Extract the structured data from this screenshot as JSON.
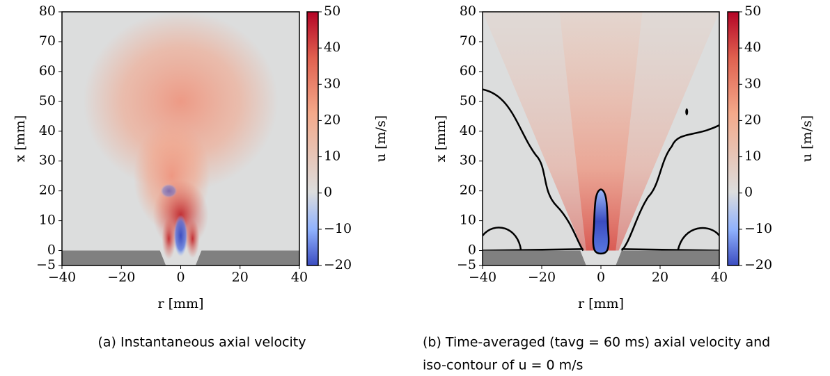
{
  "chart_data": [
    {
      "type": "heatmap",
      "xlabel": "r [mm]",
      "ylabel": "x [mm]",
      "colorbar_label": "u [m/s]",
      "xlim": [
        -40,
        40
      ],
      "ylim": [
        -5,
        80
      ],
      "xticks": [
        {
          "value": -40,
          "label": "−40"
        },
        {
          "value": -20,
          "label": "−20"
        },
        0,
        20,
        40
      ],
      "yticks": [
        {
          "value": -5,
          "label": "−5"
        },
        0,
        10,
        20,
        30,
        40,
        50,
        60,
        70,
        80
      ],
      "clim": [
        -20,
        50
      ],
      "cticks": [
        {
          "value": -20,
          "label": "−20"
        },
        {
          "value": -10,
          "label": "−10"
        },
        0,
        10,
        20,
        30,
        40,
        50
      ],
      "caption": [
        "(a) Instantaneous axial velocity"
      ]
    },
    {
      "type": "heatmap",
      "xlabel": "r [mm]",
      "ylabel": "x [mm]",
      "colorbar_label": "u [m/s]",
      "xlim": [
        -40,
        40
      ],
      "ylim": [
        -5,
        80
      ],
      "xticks": [
        {
          "value": -40,
          "label": "−40"
        },
        {
          "value": -20,
          "label": "−20"
        },
        0,
        20,
        40
      ],
      "yticks": [
        {
          "value": -5,
          "label": "−5"
        },
        0,
        10,
        20,
        30,
        40,
        50,
        60,
        70,
        80
      ],
      "clim": [
        -20,
        50
      ],
      "cticks": [
        {
          "value": -20,
          "label": "−20"
        },
        {
          "value": -10,
          "label": "−10"
        },
        0,
        10,
        20,
        30,
        40,
        50
      ],
      "caption": [
        "(b) Time-averaged (tavg = 60 ms) axial velocity and",
        "iso-contour of u = 0 m/s"
      ]
    }
  ]
}
